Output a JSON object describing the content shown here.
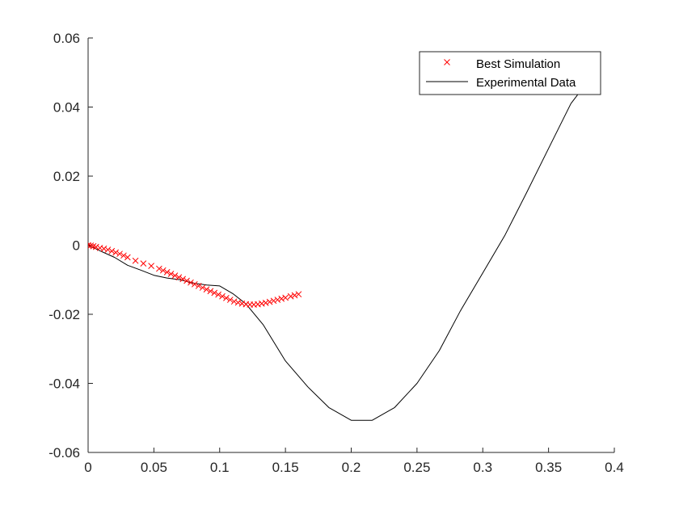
{
  "chart_data": {
    "type": "scatter",
    "title": "",
    "xlabel": "",
    "ylabel": "",
    "xlim": [
      0,
      0.4
    ],
    "ylim": [
      -0.06,
      0.06
    ],
    "xticks": [
      0,
      0.05,
      0.1,
      0.15,
      0.2,
      0.25,
      0.3,
      0.35,
      0.4
    ],
    "yticks": [
      -0.06,
      -0.04,
      -0.02,
      0,
      0.02,
      0.04,
      0.06
    ],
    "xtick_labels": [
      "0",
      "0.05",
      "0.1",
      "0.15",
      "0.2",
      "0.25",
      "0.3",
      "0.35",
      "0.4"
    ],
    "ytick_labels": [
      "-0.06",
      "-0.04",
      "-0.02",
      "0",
      "0.02",
      "0.04",
      "0.06"
    ],
    "grid": false,
    "legend_position": "top-right",
    "series": [
      {
        "name": "Best Simulation",
        "kind": "scatter",
        "marker": "x",
        "color": "#ff0000",
        "x": [
          0.0,
          0.002,
          0.004,
          0.006,
          0.009,
          0.012,
          0.015,
          0.018,
          0.021,
          0.024,
          0.027,
          0.03,
          0.036,
          0.042,
          0.048,
          0.054,
          0.057,
          0.06,
          0.063,
          0.066,
          0.069,
          0.072,
          0.075,
          0.078,
          0.081,
          0.084,
          0.087,
          0.09,
          0.093,
          0.096,
          0.099,
          0.102,
          0.105,
          0.108,
          0.111,
          0.114,
          0.117,
          0.12,
          0.123,
          0.126,
          0.129,
          0.132,
          0.135,
          0.138,
          0.141,
          0.144,
          0.147,
          0.15,
          0.154,
          0.157,
          0.16
        ],
        "y": [
          0.0,
          -0.0001,
          -0.0003,
          -0.0005,
          -0.0008,
          -0.001,
          -0.0013,
          -0.0017,
          -0.0021,
          -0.0025,
          -0.003,
          -0.0035,
          -0.0045,
          -0.0053,
          -0.006,
          -0.0068,
          -0.0073,
          -0.0078,
          -0.0083,
          -0.0088,
          -0.0093,
          -0.0098,
          -0.0103,
          -0.0108,
          -0.0113,
          -0.0118,
          -0.0123,
          -0.0128,
          -0.0133,
          -0.0138,
          -0.0143,
          -0.0148,
          -0.0153,
          -0.0158,
          -0.0163,
          -0.0166,
          -0.0169,
          -0.0171,
          -0.0172,
          -0.0172,
          -0.0171,
          -0.0169,
          -0.0167,
          -0.0164,
          -0.0161,
          -0.0158,
          -0.0155,
          -0.0152,
          -0.0148,
          -0.0145,
          -0.0142
        ]
      },
      {
        "name": "Experimental Data",
        "kind": "line",
        "color": "#000000",
        "x": [
          0.0,
          0.01,
          0.02,
          0.03,
          0.04,
          0.05,
          0.06,
          0.07,
          0.08,
          0.09,
          0.1,
          0.11,
          0.12,
          0.133,
          0.15,
          0.167,
          0.183,
          0.2,
          0.216,
          0.233,
          0.25,
          0.267,
          0.283,
          0.3,
          0.317,
          0.333,
          0.35,
          0.367,
          0.378
        ],
        "y": [
          0.0,
          -0.0018,
          -0.0035,
          -0.0058,
          -0.0072,
          -0.0087,
          -0.0095,
          -0.01,
          -0.011,
          -0.0115,
          -0.0118,
          -0.014,
          -0.017,
          -0.023,
          -0.0335,
          -0.041,
          -0.047,
          -0.0507,
          -0.0507,
          -0.047,
          -0.04,
          -0.0305,
          -0.019,
          -0.008,
          0.003,
          0.015,
          0.028,
          0.041,
          0.0465
        ]
      }
    ]
  }
}
